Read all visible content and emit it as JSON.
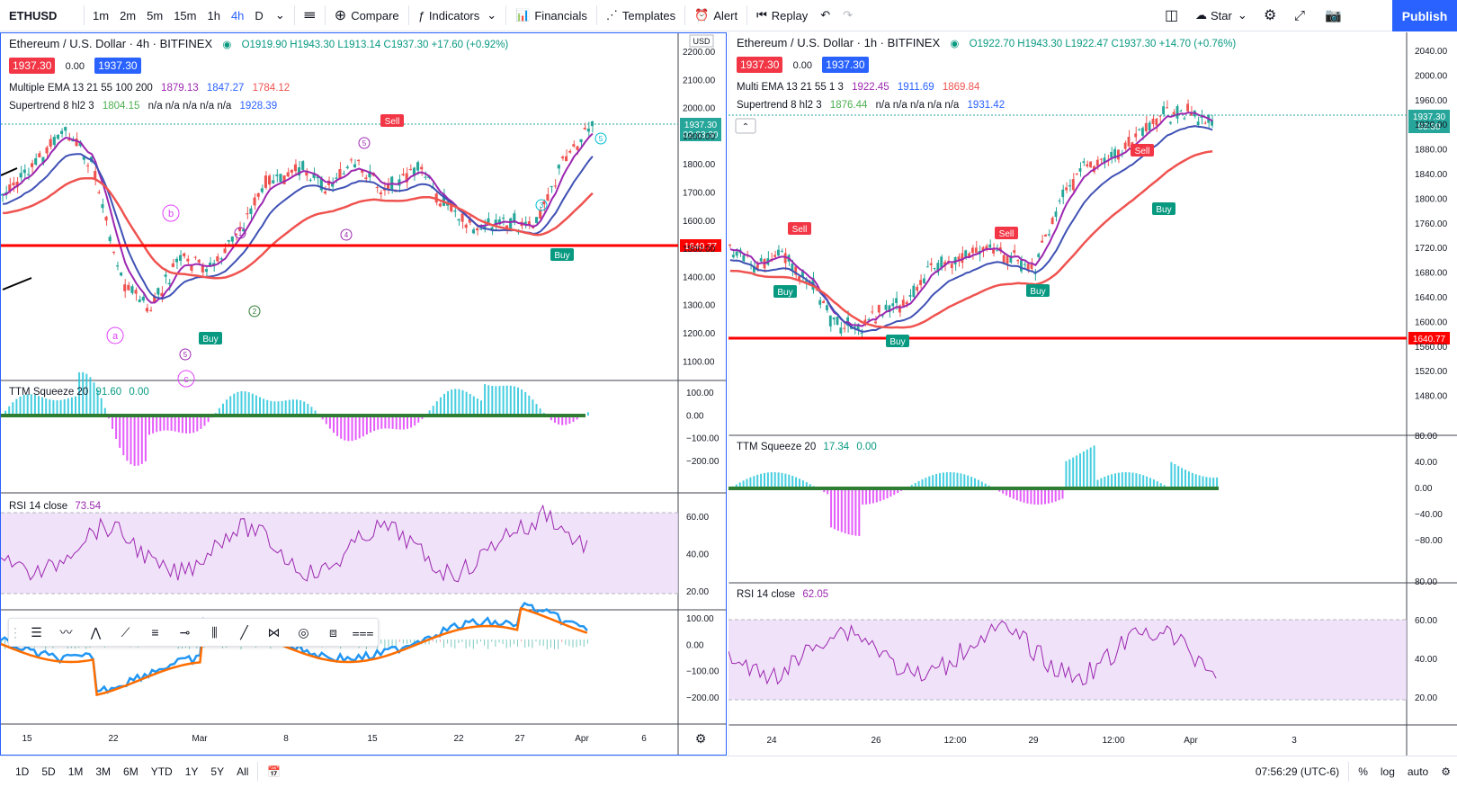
{
  "toolbar": {
    "symbol": "ETHUSD",
    "timeframes": [
      "1m",
      "2m",
      "5m",
      "15m",
      "1h",
      "4h",
      "D"
    ],
    "active_timeframe": "4h",
    "compare": "Compare",
    "indicators": "Indicators",
    "financials": "Financials",
    "templates": "Templates",
    "alert": "Alert",
    "replay": "Replay",
    "layout_name": "Star",
    "publish": "Publish"
  },
  "left_chart": {
    "title": "Ethereum / U.S. Dollar · 4h · BITFINEX",
    "ohlc": "O1919.90 H1943.30 L1913.14 C1937.30 +17.60 (+0.92%)",
    "sell_price": "1937.30",
    "spread": "0.00",
    "buy_price": "1937.30",
    "ema_label": "Multiple EMA 13 21 55 100 200",
    "ema_values": [
      "1879.13",
      "1847.27",
      "1784.12"
    ],
    "supertrend_label": "Supertrend 8 hl2 3",
    "supertrend_values": [
      "1804.15",
      "n/a n/a n/a n/a n/a",
      "1928.39"
    ],
    "currency": "USD",
    "price_ticks": [
      "2200.00",
      "2100.00",
      "2000.00",
      "1900.00",
      "1800.00",
      "1700.00",
      "1600.00",
      "1500.00",
      "1400.00",
      "1300.00",
      "1200.00",
      "1100.00"
    ],
    "last_price_label": "1937.30",
    "countdown": "02:03:30",
    "hline_label": "1640.77",
    "ttm_label": "TTM Squeeze 20",
    "ttm_v1": "91.60",
    "ttm_v2": "0.00",
    "ttm_ticks": [
      "100.00",
      "0.00",
      "−100.00",
      "−200.00"
    ],
    "rsi_label": "RSI 14 close",
    "rsi_value": "73.54",
    "rsi_ticks": [
      "60.00",
      "40.00",
      "20.00"
    ],
    "macd_ticks": [
      "100.00",
      "0.00",
      "−100.00",
      "−200.00"
    ],
    "x_ticks": [
      "15",
      "22",
      "Mar",
      "8",
      "15",
      "22",
      "27",
      "Apr",
      "6"
    ],
    "signals": [
      "Sell",
      "Buy",
      "Buy"
    ],
    "wave_labels": [
      "a",
      "b",
      "c",
      "5",
      "5",
      "5",
      "3",
      "2",
      "1",
      "4"
    ]
  },
  "right_chart": {
    "title": "Ethereum / U.S. Dollar · 1h · BITFINEX",
    "ohlc": "O1922.70 H1943.30 L1922.47 C1937.30 +14.70 (+0.76%)",
    "sell_price": "1937.30",
    "spread": "0.00",
    "buy_price": "1937.30",
    "ema_label": "Multi EMA 13 21 55 1 3",
    "ema_values": [
      "1922.45",
      "1911.69",
      "1869.84"
    ],
    "supertrend_label": "Supertrend 8 hl2 3",
    "supertrend_values": [
      "1876.44",
      "n/a n/a n/a n/a n/a",
      "1931.42"
    ],
    "price_ticks": [
      "2040.00",
      "2000.00",
      "1960.00",
      "1920.00",
      "1880.00",
      "1840.00",
      "1800.00",
      "1760.00",
      "1720.00",
      "1680.00",
      "1640.00",
      "1600.00",
      "1560.00",
      "1520.00",
      "1480.00"
    ],
    "last_price_label": "1937.30",
    "countdown": "03:30",
    "hline_label": "1640.77",
    "ttm_label": "TTM Squeeze 20",
    "ttm_v1": "17.34",
    "ttm_v2": "0.00",
    "ttm_ticks": [
      "80.00",
      "40.00",
      "0.00",
      "−40.00",
      "−80.00"
    ],
    "rsi_label": "RSI 14 close",
    "rsi_value": "62.05",
    "rsi_ticks": [
      "80.00",
      "60.00",
      "40.00",
      "20.00"
    ],
    "x_ticks": [
      "24",
      "26",
      "12:00",
      "29",
      "12:00",
      "Apr",
      "3"
    ],
    "signals": [
      "Sell",
      "Sell",
      "Sell",
      "Buy",
      "Buy",
      "Buy"
    ]
  },
  "bottombar": {
    "ranges": [
      "1D",
      "5D",
      "1M",
      "3M",
      "6M",
      "YTD",
      "1Y",
      "5Y",
      "All"
    ],
    "clock": "07:56:29 (UTC-6)",
    "percent": "%",
    "log": "log",
    "auto": "auto"
  },
  "colors": {
    "accent": "#2962ff",
    "sell": "#f23645",
    "buy": "#089981",
    "hline": "#ff0000",
    "rsi_band": "#e9d6f7",
    "rsi_line": "#9c27b0",
    "ema_fast": "#9c27b0",
    "ema_mid": "#3f51b5",
    "ema_slow": "#ef5350"
  }
}
